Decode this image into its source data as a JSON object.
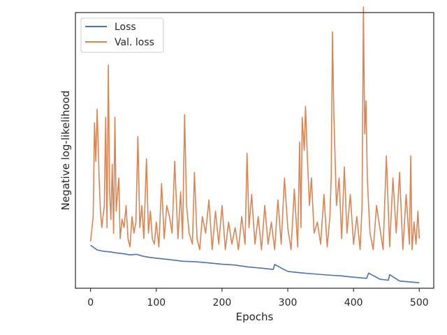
{
  "chart_data": {
    "type": "line",
    "xlabel": "Epochs",
    "ylabel": "Negative log-likelihood",
    "xlim": [
      -23,
      522
    ],
    "ylim": [
      0,
      100
    ],
    "xticks": [
      0,
      100,
      200,
      300,
      400,
      500
    ],
    "yticks_shown": false,
    "grid": false,
    "legend_position": "top-left",
    "series": [
      {
        "name": "Loss",
        "color": "#4c72b0",
        "x": [
          0,
          10,
          20,
          30,
          40,
          50,
          60,
          70,
          80,
          90,
          100,
          120,
          140,
          160,
          180,
          200,
          220,
          240,
          260,
          278,
          280,
          300,
          320,
          340,
          360,
          380,
          400,
          420,
          423,
          440,
          453,
          455,
          470,
          490,
          500
        ],
        "y": [
          15.6,
          13.9,
          13.4,
          13.2,
          12.8,
          12.5,
          12.1,
          12.3,
          11.6,
          11.2,
          10.9,
          10.4,
          9.8,
          9.6,
          9.2,
          8.7,
          8.4,
          7.7,
          7.3,
          6.8,
          8.6,
          6.1,
          5.6,
          5.2,
          4.8,
          4.5,
          4.0,
          3.6,
          5.5,
          3.3,
          2.9,
          4.9,
          2.6,
          2.2,
          2.0
        ]
      },
      {
        "name": "Val. loss",
        "color": "#dd8452",
        "x": [
          0,
          4,
          6,
          8,
          10,
          13,
          15,
          17,
          19,
          21,
          23,
          25,
          27,
          29,
          31,
          33,
          35,
          37,
          39,
          41,
          43,
          45,
          48,
          51,
          54,
          57,
          60,
          63,
          66,
          69,
          72,
          75,
          78,
          81,
          85,
          88,
          91,
          94,
          97,
          100,
          104,
          108,
          112,
          116,
          120,
          124,
          128,
          133,
          137,
          140,
          143,
          146,
          150,
          155,
          158,
          162,
          166,
          170,
          175,
          180,
          185,
          190,
          195,
          200,
          205,
          210,
          215,
          220,
          225,
          230,
          235,
          238,
          241,
          245,
          250,
          255,
          260,
          265,
          270,
          275,
          280,
          285,
          290,
          295,
          300,
          305,
          310,
          315,
          318,
          320,
          322,
          325,
          327,
          330,
          333,
          336,
          340,
          345,
          350,
          355,
          360,
          364,
          366,
          368,
          370,
          374,
          378,
          382,
          386,
          390,
          395,
          400,
          405,
          410,
          413,
          415,
          417,
          419,
          421,
          425,
          430,
          435,
          440,
          445,
          450,
          455,
          460,
          465,
          470,
          475,
          480,
          485,
          487,
          489,
          492,
          495,
          498,
          500
        ],
        "y": [
          17,
          26,
          60,
          46,
          65,
          40,
          28,
          22,
          26,
          30,
          62,
          22,
          81,
          35,
          25,
          45,
          20,
          62,
          28,
          34,
          40,
          18,
          25,
          22,
          30,
          18,
          15,
          26,
          20,
          24,
          55,
          22,
          30,
          18,
          47,
          20,
          28,
          18,
          16,
          24,
          15,
          38,
          18,
          30,
          26,
          20,
          46,
          18,
          35,
          18,
          63,
          30,
          20,
          16,
          42,
          18,
          14,
          26,
          20,
          32,
          14,
          28,
          16,
          30,
          14,
          24,
          16,
          22,
          14,
          26,
          16,
          49,
          22,
          34,
          16,
          26,
          14,
          30,
          16,
          24,
          14,
          32,
          16,
          40,
          22,
          14,
          36,
          15,
          53,
          22,
          62,
          50,
          66,
          46,
          30,
          40,
          20,
          24,
          16,
          34,
          15,
          26,
          40,
          93,
          64,
          30,
          40,
          18,
          44,
          20,
          34,
          16,
          26,
          14,
          30,
          102,
          56,
          68,
          40,
          20,
          14,
          30,
          22,
          14,
          48,
          15,
          40,
          20,
          42,
          14,
          34,
          16,
          48,
          14,
          24,
          16,
          28,
          18
        ]
      }
    ]
  }
}
